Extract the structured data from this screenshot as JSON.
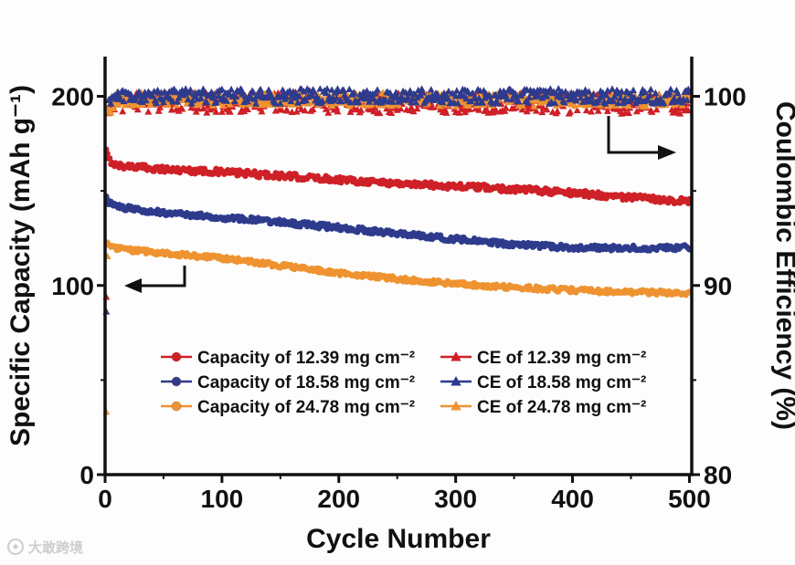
{
  "watermark": {
    "text": "大敢跨境",
    "icon": "logo-ring-icon"
  },
  "chart_data": {
    "type": "scatter",
    "title": "",
    "xlabel": "Cycle Number",
    "ylabel_left": "Specific Capacity (mAh g⁻¹)",
    "ylabel_right": "Coulombic Efficiency (%)",
    "xlim": [
      0,
      502
    ],
    "ylim_left": [
      0,
      221
    ],
    "ylim_right": [
      80,
      102.1
    ],
    "x_ticks": [
      0,
      100,
      200,
      300,
      400,
      500
    ],
    "x_minor_ticks": [
      50,
      150,
      250,
      350,
      450
    ],
    "y_left_ticks": [
      0,
      100,
      200
    ],
    "y_left_minor_ticks": [
      50,
      150
    ],
    "y_right_ticks": [
      80,
      90,
      100
    ],
    "y_right_minor_ticks": [
      85,
      95
    ],
    "grid": false,
    "legend_position": "lower-center-inside",
    "colors": {
      "red": "#cf2027",
      "blue": "#2e3b8d",
      "orange": "#ee9330"
    },
    "series": [
      {
        "name": "Capacity of 12.39 mg cm⁻²",
        "axis": "left",
        "marker": "circle",
        "color": "red",
        "anchors": {
          "x": [
            1,
            3,
            10,
            50,
            100,
            150,
            200,
            250,
            300,
            350,
            400,
            450,
            500
          ],
          "y": [
            171,
            166.5,
            163.5,
            161.5,
            160,
            158,
            156,
            154,
            152.5,
            151,
            149,
            146.5,
            144.5
          ]
        },
        "noise": 1.6
      },
      {
        "name": "Capacity of 18.58 mg cm⁻²",
        "axis": "left",
        "marker": "circle",
        "color": "blue",
        "anchors": {
          "x": [
            1,
            3,
            10,
            50,
            100,
            150,
            200,
            250,
            300,
            350,
            400,
            450,
            500
          ],
          "y": [
            146,
            144,
            141.5,
            138.5,
            136,
            133.5,
            130.5,
            127.5,
            124.5,
            121.5,
            120,
            119.8,
            120
          ]
        },
        "noise": 1.4
      },
      {
        "name": "Capacity of 24.78 mg cm⁻²",
        "axis": "left",
        "marker": "circle",
        "color": "orange",
        "anchors": {
          "x": [
            1,
            3,
            10,
            50,
            100,
            150,
            200,
            250,
            300,
            350,
            400,
            450,
            500
          ],
          "y": [
            123,
            121.5,
            119.5,
            117,
            114.5,
            110.5,
            106.5,
            103.5,
            101,
            99,
            97.5,
            96.5,
            96
          ]
        },
        "noise": 1.2
      },
      {
        "name": "CE of 12.39 mg cm⁻²",
        "axis": "right",
        "marker": "triangle",
        "color": "red",
        "anchors": {
          "x": [
            1,
            3,
            10,
            500
          ],
          "y": [
            89.5,
            99.0,
            99.7,
            99.6
          ]
        },
        "noise": 0.55
      },
      {
        "name": "CE of 18.58 mg cm⁻²",
        "axis": "right",
        "marker": "triangle",
        "color": "blue",
        "anchors": {
          "x": [
            1,
            3,
            10,
            500
          ],
          "y": [
            89,
            99.4,
            100.0,
            100.0
          ]
        },
        "noise": 0.4
      },
      {
        "name": "CE of 24.78 mg cm⁻²",
        "axis": "right",
        "marker": "triangle",
        "color": "orange",
        "anchors": {
          "x": [
            1,
            3,
            10,
            500
          ],
          "y": [
            83.5,
            99.2,
            99.85,
            99.8
          ]
        },
        "noise": 0.35
      }
    ]
  }
}
